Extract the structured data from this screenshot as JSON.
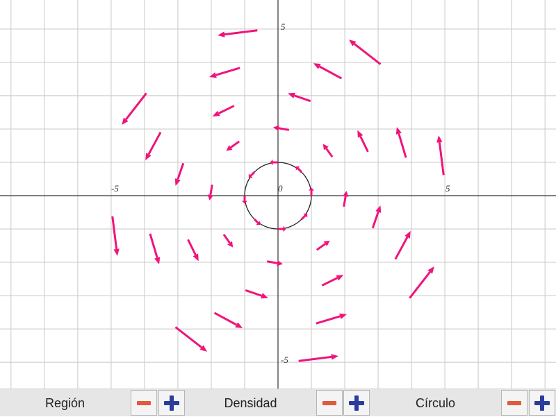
{
  "colors": {
    "arrow": "#f0147a",
    "grid": "#c8c8c8",
    "axis": "#333333",
    "circle": "#222222",
    "minus": "#e05a3c",
    "plus": "#2b3c9c"
  },
  "axis_labels": {
    "neg_x": "-5",
    "pos_x": "5",
    "origin": "0",
    "pos_y": "5",
    "neg_y": "-5"
  },
  "controls": [
    {
      "label": "Región",
      "minus_icon": "minus-icon",
      "plus_icon": "plus-icon"
    },
    {
      "label": "Densidad",
      "minus_icon": "minus-icon",
      "plus_icon": "plus-icon"
    },
    {
      "label": "Círculo",
      "minus_icon": "minus-icon",
      "plus_icon": "plus-icon"
    }
  ],
  "chart_data": {
    "type": "vector-field",
    "xlim": [
      -8.33,
      8.33
    ],
    "ylim": [
      -5.83,
      5.83
    ],
    "grid": true,
    "grid_step": 1,
    "circle": {
      "center": [
        0,
        0
      ],
      "radius": 1
    },
    "rings": [
      1,
      2,
      3,
      4,
      5
    ],
    "points_per_ring": 8
  }
}
